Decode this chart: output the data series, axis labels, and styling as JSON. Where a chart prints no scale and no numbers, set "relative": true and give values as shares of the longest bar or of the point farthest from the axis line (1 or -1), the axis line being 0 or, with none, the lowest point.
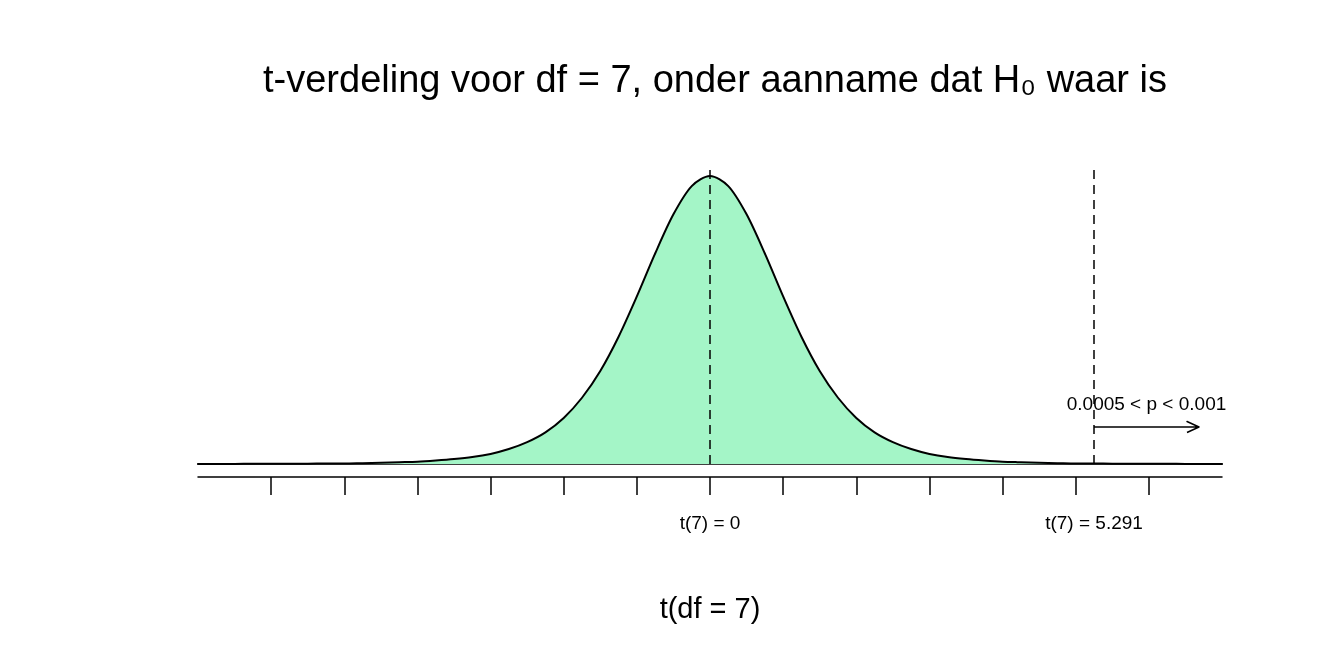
{
  "chart_data": {
    "type": "area",
    "title": "t-verdeling voor df = 7, onder aanname dat H₀ waar is",
    "xlabel": "t(df = 7)",
    "relative": true,
    "categories": [
      null,
      null,
      null,
      null,
      null,
      null,
      null,
      null,
      null,
      null,
      null,
      null,
      null,
      null,
      null,
      null,
      null,
      null,
      null,
      null,
      null,
      null,
      null,
      null,
      null,
      null,
      null,
      null,
      "t(7) = 0",
      null,
      null,
      null,
      null,
      null,
      null,
      null,
      null,
      null,
      null,
      null,
      null,
      null,
      null,
      null,
      null,
      null,
      null,
      null,
      null,
      "t(7) = 5.291",
      null,
      null,
      null,
      null,
      null,
      null,
      null
    ],
    "values": [
      0.0,
      0.0,
      0.0,
      0.001,
      0.001,
      0.001,
      0.001,
      0.002,
      0.002,
      0.003,
      0.004,
      0.006,
      0.008,
      0.012,
      0.017,
      0.024,
      0.035,
      0.052,
      0.076,
      0.11,
      0.16,
      0.23,
      0.323,
      0.442,
      0.582,
      0.731,
      0.867,
      0.965,
      1,
      0.965,
      0.867,
      0.731,
      0.582,
      0.442,
      0.323,
      0.23,
      0.16,
      0.11,
      0.076,
      0.052,
      0.035,
      0.024,
      0.017,
      0.012,
      0.008,
      0.006,
      0.004,
      0.003,
      0.002,
      0.002,
      0.001,
      0.001,
      0.001,
      0.001,
      0.0,
      0.0,
      0.0
    ],
    "color": "#a4f5c7",
    "marker": "none",
    "tick_labels": "x",
    "ref_lines": [
      {
        "axis": "x",
        "value": "t(7) = 0",
        "line_style": "dashed",
        "color": "#000000"
      },
      {
        "axis": "x",
        "value": "t(7) = 5.291",
        "line_style": "dashed",
        "color": "#000000"
      }
    ],
    "annotations": [
      {
        "text": "0.0005 < p < 0.001",
        "x": "t(7) = 5.291"
      }
    ]
  }
}
